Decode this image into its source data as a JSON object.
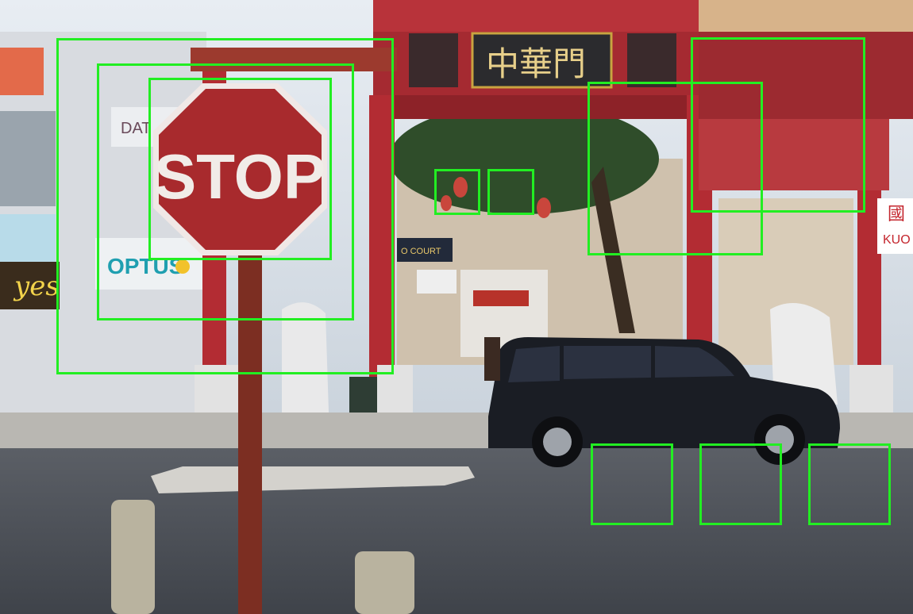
{
  "scene": {
    "stop_sign_text": "STOP",
    "gate_sign_text": "中華門",
    "shop_sign_optus": "OPTUS",
    "shop_sign_kuo": "KUO",
    "shop_sign_char": "國",
    "shop_sign_yes": "yes",
    "shop_sign_partial": "DAT",
    "shop_sign_court": "O COURT"
  },
  "detection_box_color": "#22ee22",
  "detection_boxes": [
    {
      "id": 1
    },
    {
      "id": 2
    },
    {
      "id": 3
    },
    {
      "id": 4
    },
    {
      "id": 5
    },
    {
      "id": 6
    },
    {
      "id": 7
    },
    {
      "id": 8
    },
    {
      "id": 9
    },
    {
      "id": 10
    }
  ]
}
